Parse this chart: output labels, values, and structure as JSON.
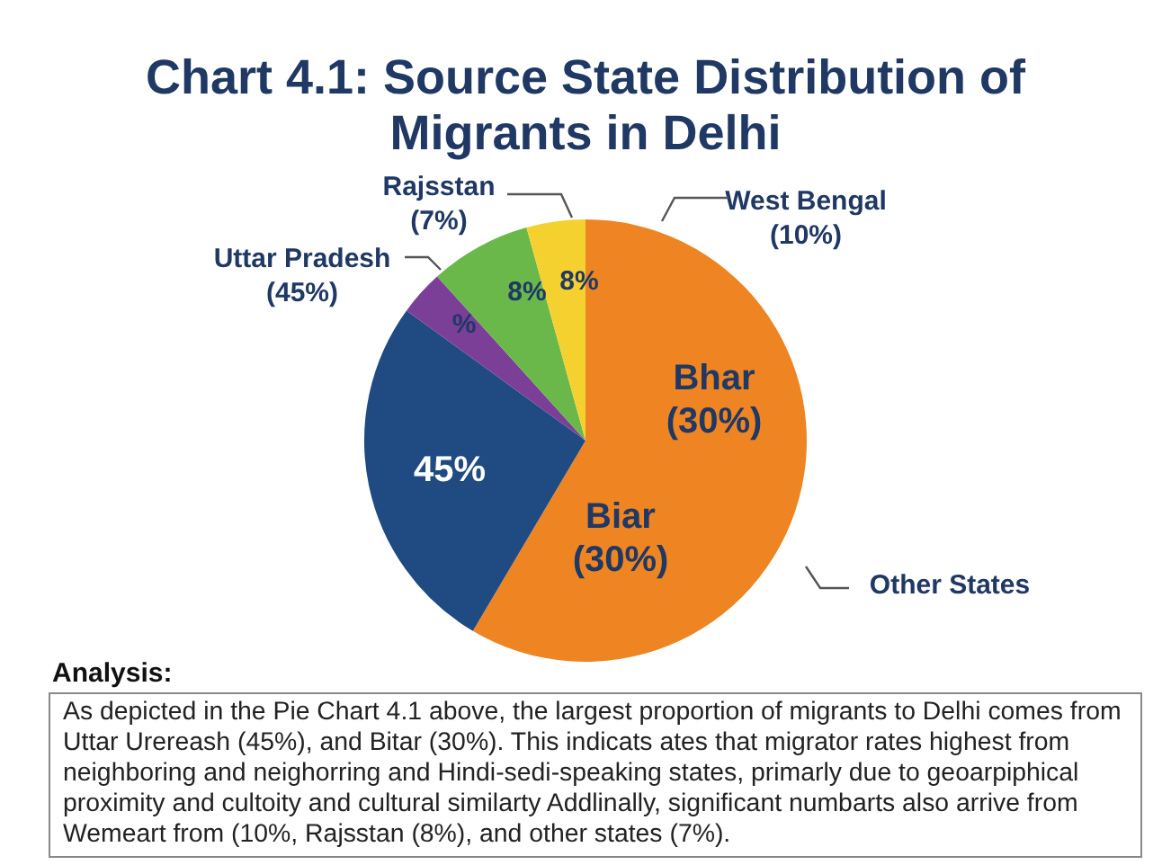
{
  "chart_data": {
    "type": "pie",
    "title": "Chart 4.1: Source State Distribution of Migrants in Delhi",
    "categories": [
      null,
      null,
      null,
      null,
      null
    ],
    "values": [
      58.5,
      26.5,
      3.3,
      7.4,
      4.3
    ],
    "colors": [
      "#ee8522",
      "#1f4a82",
      "#7b3f98",
      "#6bb84a",
      "#f5d130"
    ],
    "annotations": [
      "West Bengal (10%)",
      "Rajsstan (7%)",
      "Uttar Pradesh (45%)",
      "Other States",
      "Bhar (30%)",
      "Biar (30%)",
      "45%",
      "%",
      "8%",
      "8%",
      "Analysis:",
      "As depicted in the Pie Chart 4.1 above, the largest proportion of migrants to Delhi comes from Uttar Urereash (45%), and Bitar (30%). This indicats ates that migrator rates highest from neighboring and neighorring and Hindi-sedi-speaking states, primarly due to geoarpiphical proximity and cultoity and cultural similarty Addlinally, significant numbarts also arrive from Wemeart from (10%, Rajsstan (8%), and other states (7%)."
    ],
    "legend": false
  }
}
